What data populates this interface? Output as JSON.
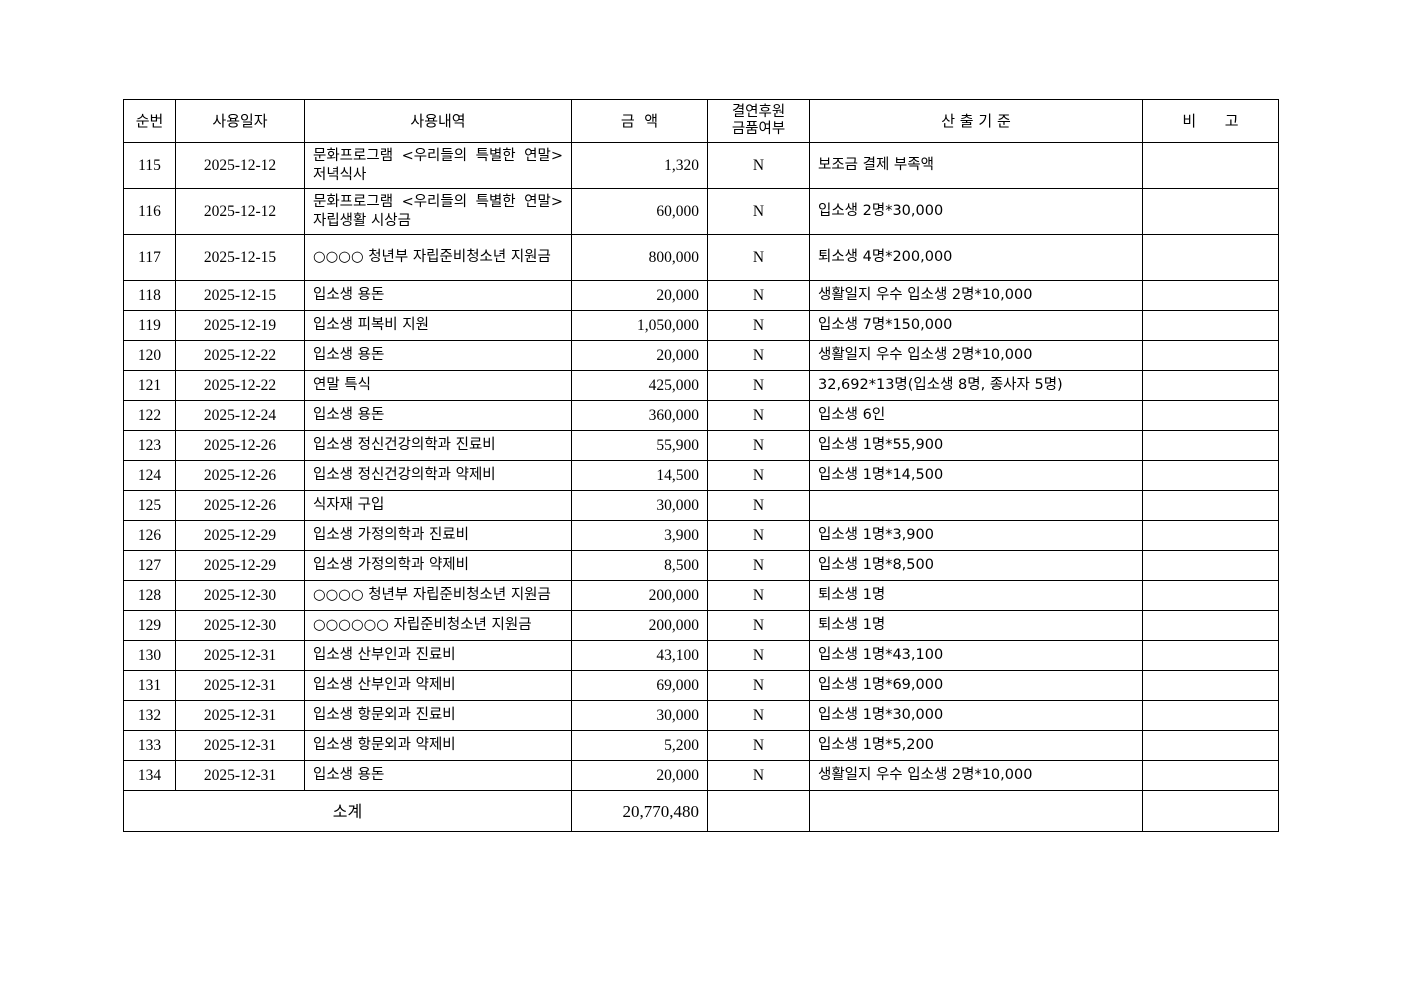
{
  "headers": {
    "no": "순번",
    "date": "사용일자",
    "desc": "사용내역",
    "amount": "금  액",
    "donation": "결연후원\n금품여부",
    "donation_line1": "결연후원",
    "donation_line2": "금품여부",
    "basis": "산 출 기 준",
    "note": "비      고"
  },
  "rows": [
    {
      "no": "115",
      "date": "2025-12-12",
      "desc": "문화프로그램 <우리들의 특별한 연말> 저녁식사",
      "amount": "1,320",
      "donation": "N",
      "basis": "보조금 결제 부족액",
      "note": "",
      "tall": true
    },
    {
      "no": "116",
      "date": "2025-12-12",
      "desc": "문화프로그램 <우리들의 특별한 연말> 자립생활 시상금",
      "amount": "60,000",
      "donation": "N",
      "basis": "입소생 2명*30,000",
      "note": "",
      "tall": true
    },
    {
      "no": "117",
      "date": "2025-12-15",
      "desc": "○○○○ 청년부 자립준비청소년 지원금",
      "amount": "800,000",
      "donation": "N",
      "basis": "퇴소생 4명*200,000",
      "note": "",
      "tall": true
    },
    {
      "no": "118",
      "date": "2025-12-15",
      "desc": "입소생 용돈",
      "amount": "20,000",
      "donation": "N",
      "basis": "생활일지 우수 입소생 2명*10,000",
      "note": ""
    },
    {
      "no": "119",
      "date": "2025-12-19",
      "desc": "입소생 피복비 지원",
      "amount": "1,050,000",
      "donation": "N",
      "basis": "입소생 7명*150,000",
      "note": ""
    },
    {
      "no": "120",
      "date": "2025-12-22",
      "desc": "입소생 용돈",
      "amount": "20,000",
      "donation": "N",
      "basis": "생활일지 우수 입소생 2명*10,000",
      "note": ""
    },
    {
      "no": "121",
      "date": "2025-12-22",
      "desc": "연말 특식",
      "amount": "425,000",
      "donation": "N",
      "basis": "32,692*13명(입소생 8명, 종사자 5명)",
      "note": ""
    },
    {
      "no": "122",
      "date": "2025-12-24",
      "desc": "입소생 용돈",
      "amount": "360,000",
      "donation": "N",
      "basis": "입소생 6인",
      "note": ""
    },
    {
      "no": "123",
      "date": "2025-12-26",
      "desc": "입소생 정신건강의학과 진료비",
      "amount": "55,900",
      "donation": "N",
      "basis": "입소생 1명*55,900",
      "note": ""
    },
    {
      "no": "124",
      "date": "2025-12-26",
      "desc": "입소생 정신건강의학과 약제비",
      "amount": "14,500",
      "donation": "N",
      "basis": "입소생 1명*14,500",
      "note": ""
    },
    {
      "no": "125",
      "date": "2025-12-26",
      "desc": "식자재 구입",
      "amount": "30,000",
      "donation": "N",
      "basis": "",
      "note": ""
    },
    {
      "no": "126",
      "date": "2025-12-29",
      "desc": "입소생 가정의학과 진료비",
      "amount": "3,900",
      "donation": "N",
      "basis": "입소생 1명*3,900",
      "note": ""
    },
    {
      "no": "127",
      "date": "2025-12-29",
      "desc": "입소생 가정의학과 약제비",
      "amount": "8,500",
      "donation": "N",
      "basis": "입소생 1명*8,500",
      "note": ""
    },
    {
      "no": "128",
      "date": "2025-12-30",
      "desc": "○○○○ 청년부 자립준비청소년 지원금",
      "amount": "200,000",
      "donation": "N",
      "basis": "퇴소생 1명",
      "note": ""
    },
    {
      "no": "129",
      "date": "2025-12-30",
      "desc": "○○○○○○ 자립준비청소년 지원금",
      "amount": "200,000",
      "donation": "N",
      "basis": "퇴소생 1명",
      "note": ""
    },
    {
      "no": "130",
      "date": "2025-12-31",
      "desc": "입소생 산부인과 진료비",
      "amount": "43,100",
      "donation": "N",
      "basis": "입소생 1명*43,100",
      "note": ""
    },
    {
      "no": "131",
      "date": "2025-12-31",
      "desc": "입소생 산부인과 약제비",
      "amount": "69,000",
      "donation": "N",
      "basis": "입소생 1명*69,000",
      "note": ""
    },
    {
      "no": "132",
      "date": "2025-12-31",
      "desc": "입소생 항문외과 진료비",
      "amount": "30,000",
      "donation": "N",
      "basis": "입소생 1명*30,000",
      "note": ""
    },
    {
      "no": "133",
      "date": "2025-12-31",
      "desc": "입소생 항문외과 약제비",
      "amount": "5,200",
      "donation": "N",
      "basis": "입소생 1명*5,200",
      "note": ""
    },
    {
      "no": "134",
      "date": "2025-12-31",
      "desc": "입소생 용돈",
      "amount": "20,000",
      "donation": "N",
      "basis": "생활일지 우수 입소생 2명*10,000",
      "note": ""
    }
  ],
  "total": {
    "label": "소계",
    "amount": "20,770,480"
  }
}
